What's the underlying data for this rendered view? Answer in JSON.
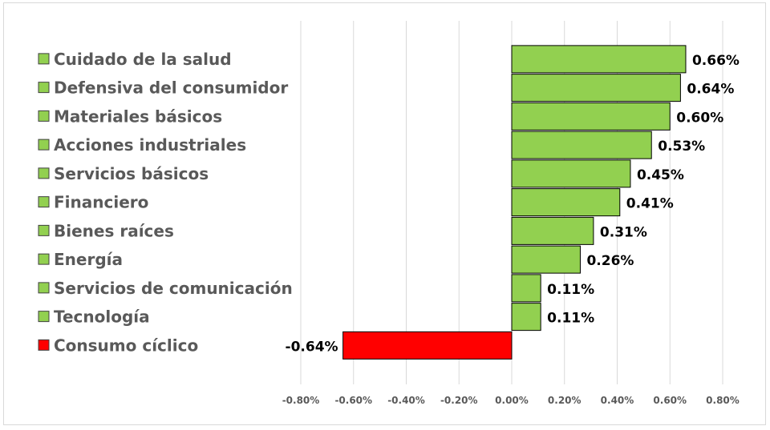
{
  "chart_data": {
    "type": "bar",
    "orientation": "horizontal",
    "categories": [
      "Cuidado de la salud",
      "Defensiva del consumidor",
      "Materiales básicos",
      "Acciones industriales",
      "Servicios básicos",
      "Financiero",
      "Bienes raíces",
      "Energía",
      "Servicios de comunicación",
      "Tecnología",
      "Consumo cíclico"
    ],
    "values": [
      0.66,
      0.64,
      0.6,
      0.53,
      0.45,
      0.41,
      0.31,
      0.26,
      0.11,
      0.11,
      -0.64
    ],
    "value_labels": [
      "0.66%",
      "0.64%",
      "0.60%",
      "0.53%",
      "0.45%",
      "0.41%",
      "0.31%",
      "0.26%",
      "0.11%",
      "0.11%",
      "-0.64%"
    ],
    "xlim": [
      -0.8,
      0.8
    ],
    "x_ticks": [
      -0.8,
      -0.6,
      -0.4,
      -0.2,
      0.0,
      0.2,
      0.4,
      0.6,
      0.8
    ],
    "x_tick_labels": [
      "-0.80%",
      "-0.60%",
      "-0.40%",
      "-0.20%",
      "0.00%",
      "0.20%",
      "0.40%",
      "0.60%",
      "0.80%"
    ],
    "title": "",
    "xlabel": "",
    "ylabel": "",
    "grid": "vertical",
    "legend": "left",
    "colors": {
      "positive": "#92d050",
      "negative": "#ff0000",
      "bar_border": "#000000",
      "grid": "#d9d9d9",
      "category_text": "#595959",
      "value_text": "#000000"
    }
  }
}
